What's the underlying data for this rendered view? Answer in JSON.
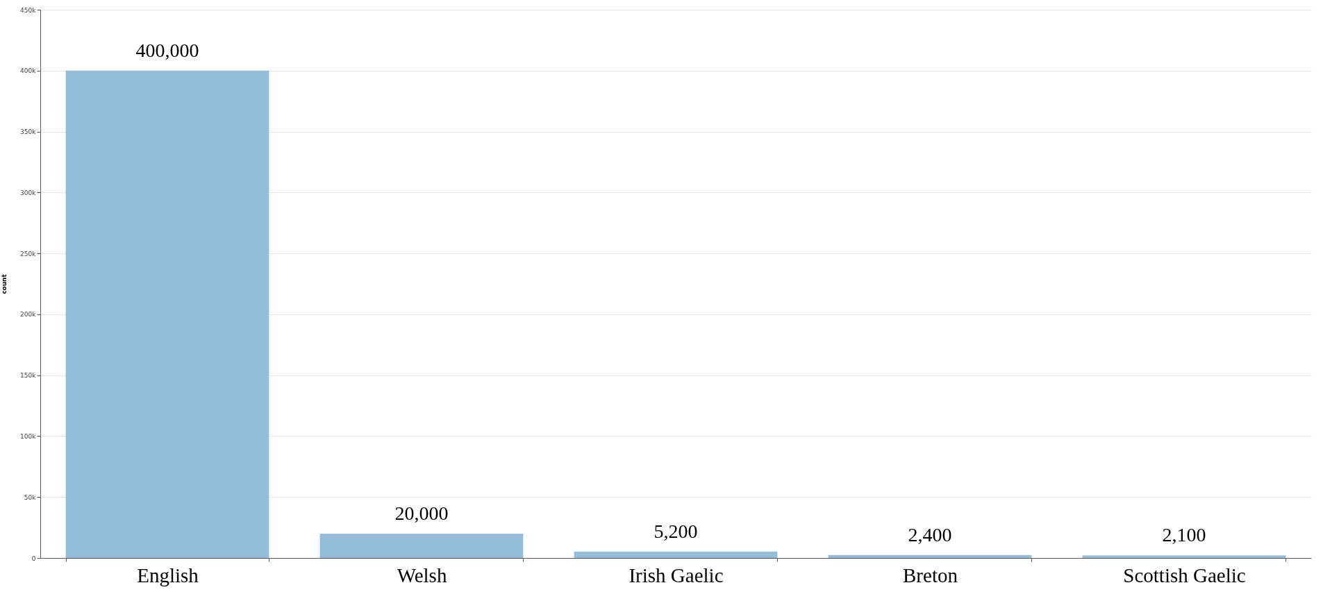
{
  "chart_data": {
    "type": "bar",
    "ylabel": "count",
    "categories": [
      "English",
      "Welsh",
      "Irish  Gaelic",
      "Breton",
      "Scottish  Gaelic"
    ],
    "values": [
      400000,
      20000,
      5200,
      2400,
      2100
    ],
    "value_labels": [
      "400,000",
      "20,000",
      "5,200",
      "2,400",
      "2,100"
    ],
    "color": "#94bdd9",
    "ylim": [
      0,
      450000
    ],
    "yticks": [
      0,
      {
        "value": 50000,
        "label": "50k"
      },
      {
        "value": 100000,
        "label": "100k"
      },
      {
        "value": 150000,
        "label": "150k"
      },
      {
        "value": 200000,
        "label": "200k"
      },
      {
        "value": 250000,
        "label": "250k"
      },
      {
        "value": 300000,
        "label": "300k"
      },
      {
        "value": 350000,
        "label": "350k"
      },
      {
        "value": 400000,
        "label": "400k"
      },
      {
        "value": 450000,
        "label": "450k"
      }
    ],
    "grid": "y"
  }
}
